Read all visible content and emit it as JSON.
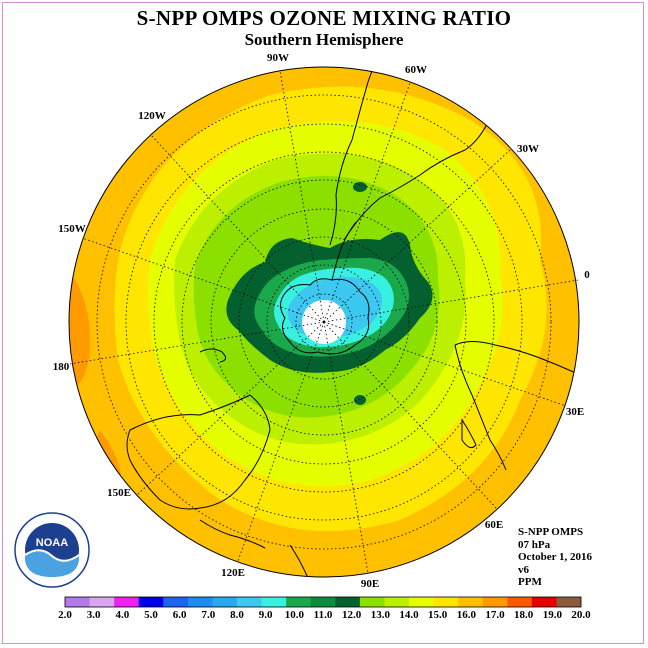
{
  "title": "S-NPP OMPS OZONE MIXING RATIO",
  "subtitle": "Southern Hemisphere",
  "longitude_labels": [
    "90W",
    "60W",
    "30W",
    "0",
    "30E",
    "60E",
    "90E",
    "120E",
    "150E",
    "180",
    "150W",
    "120W"
  ],
  "info": {
    "line1": "S-NPP OMPS",
    "line2": "07 hPa",
    "line3": "October 1, 2016",
    "line4": "v6",
    "line5": "PPM"
  },
  "colorbar": {
    "labels": [
      "2.0",
      "3.0",
      "4.0",
      "5.0",
      "6.0",
      "7.0",
      "8.0",
      "9.0",
      "10.0",
      "11.0",
      "12.0",
      "13.0",
      "14.0",
      "15.0",
      "16.0",
      "17.0",
      "18.0",
      "19.0",
      "20.0"
    ],
    "colors": [
      "#b27ce8",
      "#d9a6f0",
      "#ee22ee",
      "#0000e6",
      "#1e64f0",
      "#1e8cf0",
      "#28aaf0",
      "#3cc8f0",
      "#38f0e0",
      "#1aa84a",
      "#0c8c3c",
      "#056030",
      "#8ce000",
      "#bcf000",
      "#e6ff00",
      "#ffe600",
      "#ffc000",
      "#ff9a00",
      "#ff5a00",
      "#e60000",
      "#8c5a3c"
    ]
  },
  "ozone_levels_ppm": [
    10.0,
    11.0,
    12.0,
    13.0,
    14.0,
    15.0,
    16.0,
    17.0
  ],
  "logo": {
    "text": "NOAA"
  }
}
